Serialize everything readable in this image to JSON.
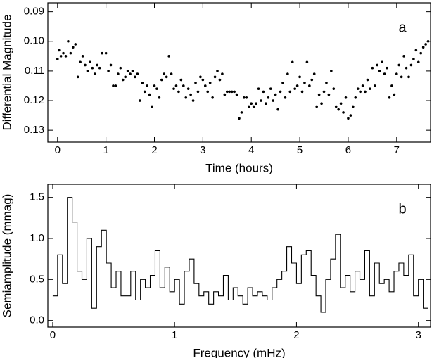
{
  "chart_data": [
    {
      "type": "scatter",
      "xlabel": "Time (hours)",
      "ylabel": "Differential Magnitude",
      "annotation": "a",
      "color": "#000000",
      "y_inverted": true,
      "xlim": [
        -0.2,
        7.7
      ],
      "ylim": [
        0.087,
        0.134
      ],
      "xticks": [
        0,
        1,
        2,
        3,
        4,
        5,
        6,
        7
      ],
      "yticks": [
        0.09,
        {
          "value": 0.1,
          "label": "0.10"
        },
        0.11,
        0.12,
        0.13
      ],
      "x": [
        0.0,
        0.03,
        0.07,
        0.12,
        0.17,
        0.22,
        0.27,
        0.32,
        0.37,
        0.42,
        0.47,
        0.52,
        0.57,
        0.62,
        0.67,
        0.72,
        0.77,
        0.82,
        0.87,
        0.92,
        1.0,
        1.05,
        1.1,
        1.15,
        1.2,
        1.25,
        1.3,
        1.35,
        1.4,
        1.45,
        1.5,
        1.55,
        1.6,
        1.65,
        1.7,
        1.75,
        1.8,
        1.85,
        1.9,
        1.95,
        2.0,
        2.05,
        2.1,
        2.15,
        2.2,
        2.25,
        2.3,
        2.35,
        2.4,
        2.45,
        2.5,
        2.55,
        2.6,
        2.65,
        2.7,
        2.75,
        2.8,
        2.85,
        2.9,
        2.95,
        3.0,
        3.05,
        3.1,
        3.15,
        3.2,
        3.25,
        3.3,
        3.35,
        3.4,
        3.45,
        3.5,
        3.55,
        3.6,
        3.65,
        3.7,
        3.75,
        3.8,
        3.85,
        3.9,
        3.95,
        4.0,
        4.05,
        4.1,
        4.15,
        4.2,
        4.25,
        4.3,
        4.35,
        4.4,
        4.45,
        4.5,
        4.55,
        4.6,
        4.65,
        4.7,
        4.75,
        4.8,
        4.85,
        4.9,
        4.95,
        5.0,
        5.05,
        5.1,
        5.15,
        5.2,
        5.25,
        5.3,
        5.35,
        5.4,
        5.45,
        5.5,
        5.55,
        5.6,
        5.65,
        5.7,
        5.75,
        5.8,
        5.85,
        5.9,
        5.95,
        6.0,
        6.05,
        6.1,
        6.15,
        6.2,
        6.25,
        6.3,
        6.35,
        6.4,
        6.45,
        6.5,
        6.55,
        6.6,
        6.65,
        6.7,
        6.75,
        6.8,
        6.85,
        6.9,
        6.95,
        7.0,
        7.05,
        7.1,
        7.15,
        7.2,
        7.25,
        7.3,
        7.35,
        7.4,
        7.45,
        7.5,
        7.55,
        7.6,
        7.65
      ],
      "values": [
        0.106,
        0.103,
        0.105,
        0.104,
        0.105,
        0.1,
        0.104,
        0.102,
        0.101,
        0.112,
        0.107,
        0.105,
        0.108,
        0.11,
        0.107,
        0.109,
        0.111,
        0.108,
        0.109,
        0.104,
        0.104,
        0.11,
        0.108,
        0.115,
        0.115,
        0.111,
        0.109,
        0.113,
        0.112,
        0.11,
        0.111,
        0.11,
        0.112,
        0.111,
        0.12,
        0.114,
        0.117,
        0.115,
        0.118,
        0.122,
        0.115,
        0.116,
        0.119,
        0.113,
        0.111,
        0.112,
        0.105,
        0.111,
        0.116,
        0.115,
        0.117,
        0.113,
        0.115,
        0.119,
        0.116,
        0.118,
        0.12,
        0.114,
        0.117,
        0.112,
        0.113,
        0.115,
        0.117,
        0.114,
        0.119,
        0.112,
        0.11,
        0.113,
        0.111,
        0.118,
        0.117,
        0.117,
        0.117,
        0.117,
        0.118,
        0.126,
        0.124,
        0.119,
        0.119,
        0.122,
        0.121,
        0.122,
        0.121,
        0.116,
        0.12,
        0.117,
        0.121,
        0.119,
        0.116,
        0.12,
        0.118,
        0.123,
        0.117,
        0.114,
        0.119,
        0.111,
        0.117,
        0.107,
        0.116,
        0.115,
        0.112,
        0.117,
        0.114,
        0.107,
        0.115,
        0.113,
        0.111,
        0.122,
        0.118,
        0.121,
        0.117,
        0.114,
        0.118,
        0.11,
        0.116,
        0.122,
        0.123,
        0.121,
        0.124,
        0.119,
        0.126,
        0.125,
        0.122,
        0.119,
        0.116,
        0.117,
        0.115,
        0.117,
        0.113,
        0.116,
        0.109,
        0.115,
        0.108,
        0.11,
        0.107,
        0.111,
        0.109,
        0.119,
        0.115,
        0.118,
        0.111,
        0.108,
        0.112,
        0.105,
        0.109,
        0.112,
        0.108,
        0.106,
        0.103,
        0.107,
        0.104,
        0.102,
        0.101,
        0.1
      ]
    },
    {
      "type": "line",
      "step": "mid",
      "xlabel": "Frequency (mHz)",
      "ylabel": "Semiamplitude (mmag)",
      "annotation": "b",
      "color": "#000000",
      "xlim": [
        -0.04,
        3.1
      ],
      "ylim": [
        -0.08,
        1.66
      ],
      "xticks": [
        0,
        1,
        2,
        3
      ],
      "yticks": [
        {
          "value": 0,
          "label": "0.0"
        },
        0.5,
        {
          "value": 1,
          "label": "1.0"
        },
        1.5
      ],
      "x": [
        0.02,
        0.06,
        0.1,
        0.14,
        0.18,
        0.22,
        0.26,
        0.3,
        0.34,
        0.38,
        0.42,
        0.46,
        0.5,
        0.54,
        0.58,
        0.62,
        0.66,
        0.7,
        0.74,
        0.78,
        0.82,
        0.86,
        0.9,
        0.94,
        0.98,
        1.02,
        1.06,
        1.1,
        1.14,
        1.18,
        1.22,
        1.26,
        1.3,
        1.34,
        1.38,
        1.42,
        1.46,
        1.5,
        1.54,
        1.58,
        1.62,
        1.66,
        1.7,
        1.74,
        1.78,
        1.82,
        1.86,
        1.9,
        1.94,
        1.98,
        2.02,
        2.06,
        2.1,
        2.14,
        2.18,
        2.22,
        2.26,
        2.3,
        2.34,
        2.38,
        2.42,
        2.46,
        2.5,
        2.54,
        2.58,
        2.62,
        2.66,
        2.7,
        2.74,
        2.78,
        2.82,
        2.86,
        2.9,
        2.94,
        2.98,
        3.02,
        3.06
      ],
      "values": [
        0.3,
        0.8,
        0.45,
        1.5,
        1.2,
        0.6,
        0.5,
        1.0,
        0.15,
        0.9,
        1.1,
        0.7,
        0.4,
        0.6,
        0.3,
        0.3,
        0.6,
        0.25,
        0.5,
        0.4,
        0.55,
        0.85,
        0.4,
        0.65,
        0.35,
        0.5,
        0.2,
        0.6,
        0.75,
        0.45,
        0.3,
        0.35,
        0.2,
        0.35,
        0.3,
        0.55,
        0.25,
        0.4,
        0.3,
        0.2,
        0.4,
        0.3,
        0.35,
        0.3,
        0.25,
        0.4,
        0.5,
        0.6,
        0.9,
        0.7,
        0.45,
        0.8,
        0.85,
        0.55,
        0.3,
        0.1,
        0.5,
        0.75,
        1.05,
        0.4,
        0.55,
        0.35,
        0.6,
        0.5,
        0.85,
        0.3,
        0.7,
        0.45,
        0.5,
        0.35,
        0.6,
        0.7,
        0.55,
        0.8,
        0.3,
        0.5,
        0.15
      ]
    }
  ]
}
